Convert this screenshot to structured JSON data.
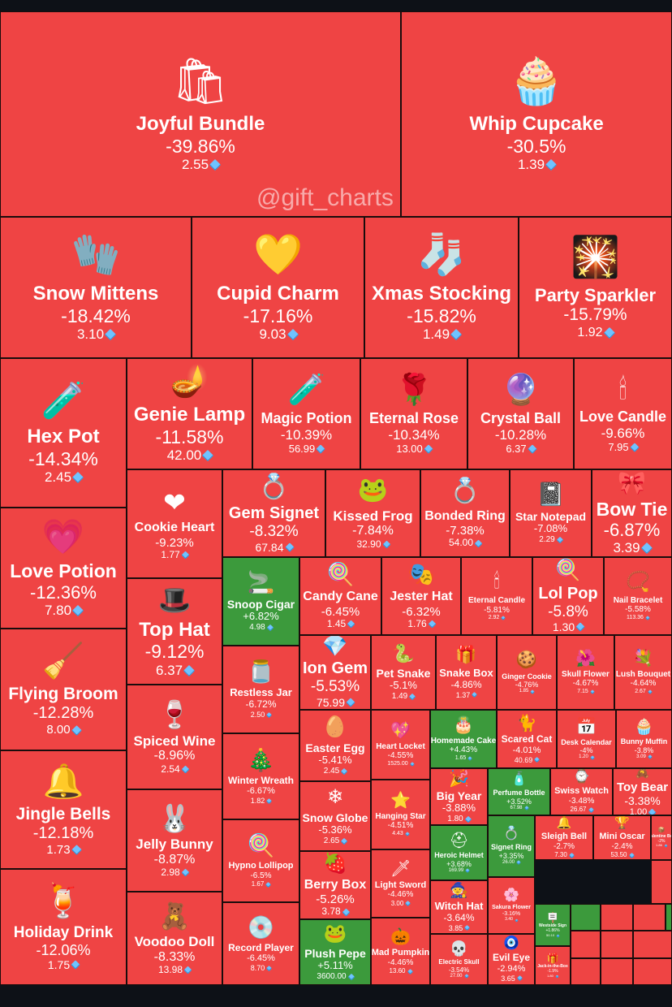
{
  "watermark": "@gift_charts",
  "colors": {
    "negative": "#ef4444",
    "positive": "#3c9a3c",
    "background": "#0d1117",
    "gem": "#6fc3ff"
  },
  "chart_data": {
    "type": "treemap",
    "value_unit": "price in TON (diamond icon)",
    "items": [
      {
        "name": "Joyful Bundle",
        "change": "-39.86%",
        "price": "2.55",
        "icon": "gift-bag-icon"
      },
      {
        "name": "Whip Cupcake",
        "change": "-30.5%",
        "price": "1.39",
        "icon": "cupcake-icon"
      },
      {
        "name": "Snow Mittens",
        "change": "-18.42%",
        "price": "3.10",
        "icon": "mittens-icon"
      },
      {
        "name": "Cupid Charm",
        "change": "-17.16%",
        "price": "9.03",
        "icon": "heart-lock-icon"
      },
      {
        "name": "Xmas Stocking",
        "change": "-15.82%",
        "price": "1.49",
        "icon": "stocking-icon"
      },
      {
        "name": "Party Sparkler",
        "change": "-15.79%",
        "price": "1.92",
        "icon": "sparkler-icon"
      },
      {
        "name": "Hex Pot",
        "change": "-14.34%",
        "price": "2.45",
        "icon": "cauldron-icon"
      },
      {
        "name": "Genie Lamp",
        "change": "-11.58%",
        "price": "42.00",
        "icon": "lamp-icon"
      },
      {
        "name": "Magic Potion",
        "change": "-10.39%",
        "price": "56.99",
        "icon": "potion-icon"
      },
      {
        "name": "Eternal Rose",
        "change": "-10.34%",
        "price": "13.00",
        "icon": "rose-icon"
      },
      {
        "name": "Crystal Ball",
        "change": "-10.28%",
        "price": "6.37",
        "icon": "crystal-ball-icon"
      },
      {
        "name": "Love Candle",
        "change": "-9.66%",
        "price": "7.95",
        "icon": "candle-icon"
      },
      {
        "name": "Love Potion",
        "change": "-12.36%",
        "price": "7.80",
        "icon": "love-potion-icon"
      },
      {
        "name": "Cookie Heart",
        "change": "-9.23%",
        "price": "1.77",
        "icon": "cookie-heart-icon"
      },
      {
        "name": "Gem Signet",
        "change": "-8.32%",
        "price": "67.84",
        "icon": "ring-icon"
      },
      {
        "name": "Kissed Frog",
        "change": "-7.84%",
        "price": "32.90",
        "icon": "frog-icon"
      },
      {
        "name": "Bonded Ring",
        "change": "-7.38%",
        "price": "54.00",
        "icon": "ring-icon"
      },
      {
        "name": "Star Notepad",
        "change": "-7.08%",
        "price": "2.29",
        "icon": "notepad-icon"
      },
      {
        "name": "Bow Tie",
        "change": "-6.87%",
        "price": "3.39",
        "icon": "bow-tie-icon"
      },
      {
        "name": "Snoop Cigar",
        "change": "+6.82%",
        "price": "4.98",
        "icon": "cigar-icon"
      },
      {
        "name": "Candy Cane",
        "change": "-6.45%",
        "price": "1.45",
        "icon": "candy-cane-icon"
      },
      {
        "name": "Jester Hat",
        "change": "-6.32%",
        "price": "1.76",
        "icon": "jester-hat-icon"
      },
      {
        "name": "Eternal Candle",
        "change": "-5.81%",
        "price": "2.92",
        "icon": "candle-icon"
      },
      {
        "name": "Lol Pop",
        "change": "-5.8%",
        "price": "1.30",
        "icon": "lollipop-icon"
      },
      {
        "name": "Nail Bracelet",
        "change": "-5.58%",
        "price": "113.36",
        "icon": "bracelet-icon"
      },
      {
        "name": "Flying Broom",
        "change": "-12.28%",
        "price": "8.00",
        "icon": "broom-icon"
      },
      {
        "name": "Top Hat",
        "change": "-9.12%",
        "price": "6.37",
        "icon": "top-hat-icon"
      },
      {
        "name": "Restless Jar",
        "change": "-6.72%",
        "price": "2.50",
        "icon": "jar-icon"
      },
      {
        "name": "Ion Gem",
        "change": "-5.53%",
        "price": "75.99",
        "icon": "gem-icon"
      },
      {
        "name": "Pet Snake",
        "change": "-5.1%",
        "price": "1.49",
        "icon": "snake-icon"
      },
      {
        "name": "Snake Box",
        "change": "-4.86%",
        "price": "1.37",
        "icon": "gift-box-icon"
      },
      {
        "name": "Ginger Cookie",
        "change": "-4.76%",
        "price": "1.85",
        "icon": "gingerbread-icon"
      },
      {
        "name": "Skull Flower",
        "change": "-4.67%",
        "price": "7.15",
        "icon": "flower-icon"
      },
      {
        "name": "Lush Bouquet",
        "change": "-4.64%",
        "price": "2.67",
        "icon": "bouquet-icon"
      },
      {
        "name": "Spiced Wine",
        "change": "-8.96%",
        "price": "2.54",
        "icon": "wine-icon"
      },
      {
        "name": "Winter Wreath",
        "change": "-6.67%",
        "price": "1.82",
        "icon": "wreath-icon"
      },
      {
        "name": "Easter Egg",
        "change": "-5.41%",
        "price": "2.45",
        "icon": "egg-icon"
      },
      {
        "name": "Heart Locket",
        "change": "-4.55%",
        "price": "1525.00",
        "icon": "locket-icon"
      },
      {
        "name": "Homemade Cake",
        "change": "+4.43%",
        "price": "1.65",
        "icon": "cake-icon"
      },
      {
        "name": "Scared Cat",
        "change": "-4.01%",
        "price": "40.69",
        "icon": "cat-icon"
      },
      {
        "name": "Desk Calendar",
        "change": "-4%",
        "price": "1.20",
        "icon": "calendar-icon"
      },
      {
        "name": "Bunny Muffin",
        "change": "-3.8%",
        "price": "3.09",
        "icon": "muffin-icon"
      },
      {
        "name": "Jingle Bells",
        "change": "-12.18%",
        "price": "1.73",
        "icon": "bells-icon"
      },
      {
        "name": "Jelly Bunny",
        "change": "-8.87%",
        "price": "2.98",
        "icon": "bunny-icon"
      },
      {
        "name": "Hypno Lollipop",
        "change": "-6.5%",
        "price": "1.67",
        "icon": "lollipop-icon"
      },
      {
        "name": "Snow Globe",
        "change": "-5.36%",
        "price": "2.65",
        "icon": "snow-globe-icon"
      },
      {
        "name": "Hanging Star",
        "change": "-4.51%",
        "price": "4.43",
        "icon": "star-icon"
      },
      {
        "name": "Big Year",
        "change": "-3.88%",
        "price": "1.80",
        "icon": "party-icon"
      },
      {
        "name": "Perfume Bottle",
        "change": "+3.52%",
        "price": "67.98",
        "icon": "perfume-icon"
      },
      {
        "name": "Swiss Watch",
        "change": "-3.48%",
        "price": "26.67",
        "icon": "watch-icon"
      },
      {
        "name": "Toy Bear",
        "change": "-3.38%",
        "price": "1.00",
        "icon": "bear-icon"
      },
      {
        "name": "Berry Box",
        "change": "-5.26%",
        "price": "3.78",
        "icon": "berry-box-icon"
      },
      {
        "name": "Light Sword",
        "change": "-4.46%",
        "price": "3.00",
        "icon": "sword-icon"
      },
      {
        "name": "Heroic Helmet",
        "change": "+3.68%",
        "price": "169.99",
        "icon": "helmet-icon"
      },
      {
        "name": "Signet Ring",
        "change": "+3.35%",
        "price": "26.00",
        "icon": "ring-icon"
      },
      {
        "name": "Sleigh Bell",
        "change": "-2.7%",
        "price": "7.30",
        "icon": "bell-icon"
      },
      {
        "name": "Mini Oscar",
        "change": "-2.4%",
        "price": "53.50",
        "icon": "trophy-icon"
      },
      {
        "name": "Valentine Box",
        "change": "-2%",
        "price": "1.86",
        "icon": "box-icon"
      },
      {
        "name": "Holiday Drink",
        "change": "-12.06%",
        "price": "1.75",
        "icon": "drink-icon"
      },
      {
        "name": "Voodoo Doll",
        "change": "-8.33%",
        "price": "13.98",
        "icon": "doll-icon"
      },
      {
        "name": "Record Player",
        "change": "-6.45%",
        "price": "8.70",
        "icon": "record-player-icon"
      },
      {
        "name": "Plush Pepe",
        "change": "+5.11%",
        "price": "3600.00",
        "icon": "pepe-icon"
      },
      {
        "name": "Mad Pumpkin",
        "change": "-4.46%",
        "price": "13.60",
        "icon": "pumpkin-icon"
      },
      {
        "name": "Witch Hat",
        "change": "-3.64%",
        "price": "3.85",
        "icon": "witch-hat-icon"
      },
      {
        "name": "Electric Skull",
        "change": "-3.54%",
        "price": "27.00",
        "icon": "skull-icon"
      },
      {
        "name": "Sakura Flower",
        "change": "-3.16%",
        "price": "3.40",
        "icon": "sakura-icon"
      },
      {
        "name": "Evil Eye",
        "change": "-2.94%",
        "price": "3.65",
        "icon": "eye-icon"
      },
      {
        "name": "Westside Sign",
        "change": "+1.86%",
        "price": "50.10",
        "icon": "sign-icon"
      },
      {
        "name": "Jack-in-the-Box",
        "change": "-1.9%",
        "price": "1.80",
        "icon": "jack-in-box-icon"
      }
    ]
  }
}
